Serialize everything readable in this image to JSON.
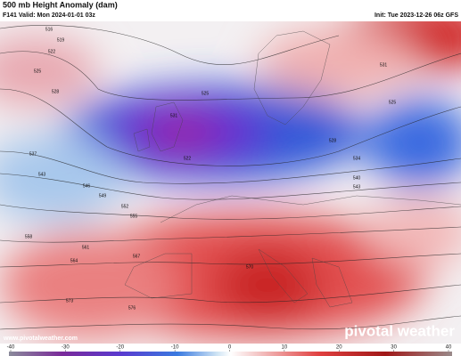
{
  "header": {
    "title": "500 mb Height Anomaly (dam)",
    "valid": "F141 Valid: Mon 2024-01-01 03z",
    "init": "Init: Tue 2023-12-26 06z GFS"
  },
  "watermark": {
    "url": "www.pivotalweather.com",
    "brand": "pivotal weather"
  },
  "colorbar": {
    "ticks": [
      -40,
      -30,
      -20,
      -10,
      0,
      10,
      20,
      30,
      40
    ]
  },
  "contour_labels": [
    516,
    519,
    522,
    525,
    528,
    531,
    525,
    522,
    537,
    543,
    546,
    549,
    552,
    555,
    558,
    561,
    564,
    567,
    570,
    573,
    576,
    531,
    525,
    528,
    534,
    540,
    543
  ]
}
